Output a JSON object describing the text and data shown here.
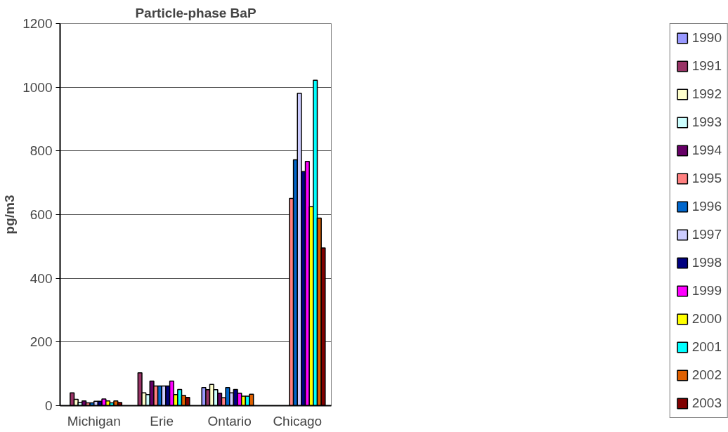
{
  "chart_data": {
    "type": "bar",
    "title": "Particle-phase BaP",
    "ylabel": "pg/m3",
    "categories": [
      "Michigan",
      "Erie",
      "Ontario",
      "Chicago"
    ],
    "ylim": [
      0,
      1200
    ],
    "yticks": [
      0,
      200,
      400,
      600,
      800,
      1000,
      1200
    ],
    "grid": "y",
    "legend": "right",
    "series": [
      {
        "name": "1990",
        "color": "#9999ff",
        "values": [
          null,
          null,
          57,
          null
        ]
      },
      {
        "name": "1991",
        "color": "#993366",
        "values": [
          40,
          103,
          50,
          null
        ]
      },
      {
        "name": "1992",
        "color": "#ffffcc",
        "values": [
          20,
          40,
          67,
          null
        ]
      },
      {
        "name": "1993",
        "color": "#ccffff",
        "values": [
          10,
          35,
          50,
          null
        ]
      },
      {
        "name": "1994",
        "color": "#660066",
        "values": [
          15,
          77,
          39,
          null
        ]
      },
      {
        "name": "1995",
        "color": "#ff8080",
        "values": [
          9,
          62,
          25,
          651
        ]
      },
      {
        "name": "1996",
        "color": "#0066cc",
        "values": [
          9,
          62,
          57,
          772
        ]
      },
      {
        "name": "1997",
        "color": "#ccccff",
        "values": [
          14,
          62,
          40,
          981
        ]
      },
      {
        "name": "1998",
        "color": "#000080",
        "values": [
          14,
          62,
          51,
          735
        ]
      },
      {
        "name": "1999",
        "color": "#ff00ff",
        "values": [
          21,
          77,
          39,
          767
        ]
      },
      {
        "name": "2000",
        "color": "#ffff00",
        "values": [
          15,
          35,
          30,
          625
        ]
      },
      {
        "name": "2001",
        "color": "#00ffff",
        "values": [
          9,
          51,
          30,
          1022
        ]
      },
      {
        "name": "2002",
        "color": "#e06000",
        "values": [
          15,
          32,
          36,
          589
        ]
      },
      {
        "name": "2003",
        "color": "#800000",
        "values": [
          10,
          26,
          null,
          495
        ]
      }
    ]
  }
}
